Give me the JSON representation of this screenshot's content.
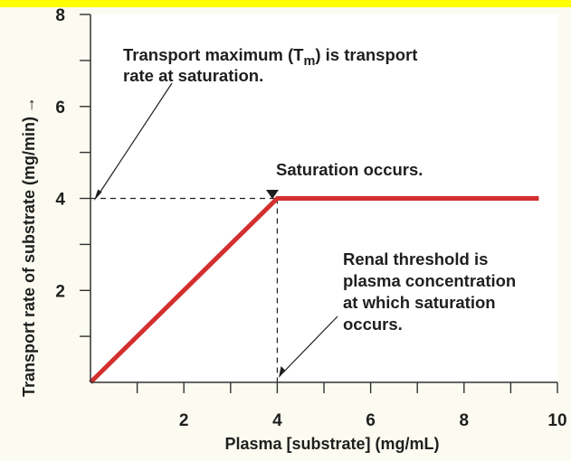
{
  "colors": {
    "background": "#fbfbf1",
    "plot_background": "#ffffff",
    "top_band": "#ffff00",
    "axis": "#333333",
    "line": "#d32f2f",
    "text": "#1f1f1f"
  },
  "chart_data": {
    "type": "line",
    "title": "",
    "xlabel": "Plasma [substrate] (mg/mL)",
    "ylabel": "Transport rate of substrate (mg/min)",
    "ylabel_arrow": "→",
    "xlim": [
      0,
      10
    ],
    "ylim": [
      0,
      8
    ],
    "grid": false,
    "x_ticks": [
      1,
      2,
      3,
      4,
      5,
      6,
      7,
      8,
      9,
      10
    ],
    "y_ticks": [
      1,
      2,
      3,
      4,
      5,
      6,
      7,
      8
    ],
    "x_tick_labels": [
      "2",
      "4",
      "6",
      "8",
      "10"
    ],
    "x_tick_label_values": [
      2,
      4,
      6,
      8,
      10
    ],
    "y_tick_labels": [
      "2",
      "4",
      "6",
      "8"
    ],
    "y_tick_label_values": [
      2,
      4,
      6,
      8
    ],
    "series": [
      {
        "x": [
          0,
          4,
          9.6
        ],
        "y": [
          0,
          4,
          4
        ]
      }
    ],
    "reference_lines": [
      {
        "x": [
          0,
          4
        ],
        "y": [
          4,
          4
        ],
        "style": "dashed"
      },
      {
        "x": [
          4,
          4
        ],
        "y": [
          4,
          0
        ],
        "style": "dashed"
      }
    ],
    "annotations": {
      "tm": {
        "line1_prefix": "Transport maximum (T",
        "line1_subscript": "m",
        "line1_suffix": ") is transport",
        "line2": "rate at saturation."
      },
      "saturation": {
        "text": "Saturation occurs."
      },
      "renal": {
        "lines": [
          "Renal threshold is",
          "plasma concentration",
          "at which saturation",
          "occurs."
        ]
      }
    }
  }
}
